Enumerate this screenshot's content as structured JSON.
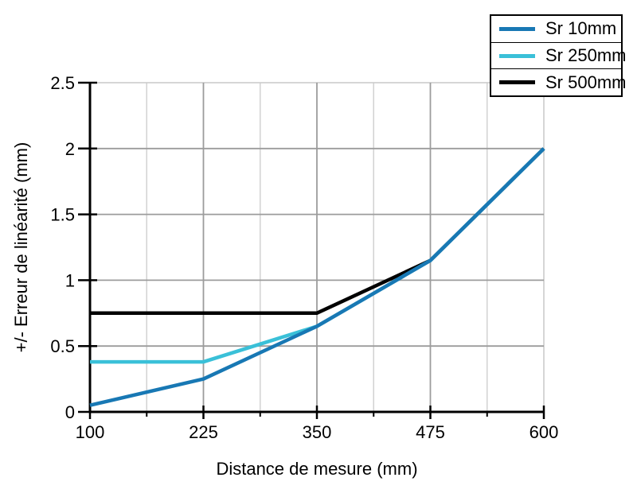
{
  "chart_data": {
    "type": "line",
    "title": "",
    "xlabel": "Distance de mesure (mm)",
    "ylabel": "+/- Erreur de linéarité (mm)",
    "xlim": [
      100,
      600
    ],
    "ylim": [
      0,
      2.5
    ],
    "x": [
      100,
      225,
      350,
      475,
      600
    ],
    "series": [
      {
        "name": "Sr 10mm",
        "color": "#1878b4",
        "values": [
          0.05,
          0.25,
          0.65,
          1.15,
          2.0
        ]
      },
      {
        "name": "Sr 250mm",
        "color": "#3ac0d8",
        "values": [
          0.38,
          0.38,
          0.65,
          1.15,
          2.0
        ]
      },
      {
        "name": "Sr 500mm",
        "color": "#000000",
        "values": [
          0.75,
          0.75,
          0.75,
          1.15,
          2.0
        ]
      }
    ],
    "x_ticks": {
      "major": [
        100,
        225,
        350,
        475,
        600
      ],
      "labels": [
        "100",
        "225",
        "350",
        "475",
        "600"
      ],
      "minor": [
        162.5,
        287.5,
        412.5,
        537.5
      ]
    },
    "y_ticks": {
      "major": [
        0,
        0.5,
        1,
        1.5,
        2,
        2.5
      ],
      "labels": [
        "0",
        "0.5",
        "1",
        "1.5",
        "2",
        "2.5"
      ]
    },
    "grid": {
      "x_major": [
        225,
        350,
        475
      ],
      "x_minor": [
        162.5,
        287.5,
        412.5,
        537.5
      ],
      "y_major": [
        0.5,
        1,
        1.5,
        2
      ],
      "top_boundary": 2.5,
      "right_boundary": 600
    },
    "legend": {
      "position": "top-right",
      "entries": [
        "Sr 10mm",
        "Sr 250mm",
        "Sr 500mm"
      ]
    },
    "colors": {
      "axis": "#000000",
      "grid_major": "#9c9c9c",
      "grid_minor": "#d2d2d2",
      "grid_light": "#c9c9c9",
      "background": "#ffffff"
    }
  }
}
